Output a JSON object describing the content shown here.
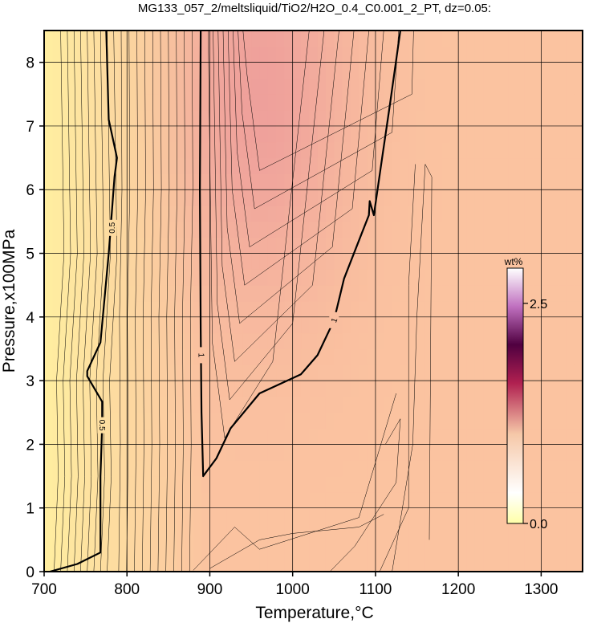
{
  "chart_data": {
    "type": "heatmap",
    "title": "MG133_057_2/meltsliquid/TiO2/H2O_0.4_C0.001_2_PT, dz=0.05:",
    "xlabel": "Temperature,°C",
    "ylabel": "Pressure,x100MPa",
    "xlim": [
      700,
      1350
    ],
    "ylim": [
      0,
      8.5
    ],
    "x_ticks": [
      700,
      800,
      900,
      1000,
      1100,
      1200,
      1300
    ],
    "y_ticks": [
      0,
      1,
      2,
      3,
      4,
      5,
      6,
      7,
      8
    ],
    "grid": true,
    "colorbar": {
      "title": "wt%",
      "range": [
        0.0,
        2.9
      ],
      "ticks": [
        {
          "value": 0.0,
          "label": "0.0"
        },
        {
          "value": 2.5,
          "label": "2.5"
        }
      ],
      "placement": "right-inside",
      "colors": [
        "#ffffa8",
        "#ffffff",
        "#b02050",
        "#500040",
        "#ffffff"
      ]
    },
    "contour_interval": 0.05,
    "labeled_contours": [
      {
        "level": 0.5,
        "label": "0.5",
        "points": [
          [
            707,
            0.0
          ],
          [
            740,
            0.12
          ],
          [
            768,
            0.3
          ],
          [
            768,
            1.5
          ],
          [
            770,
            2.3
          ],
          [
            770,
            2.67
          ],
          [
            752,
            3.07
          ],
          [
            752,
            3.15
          ],
          [
            768,
            3.6
          ],
          [
            778,
            5.0
          ],
          [
            785,
            6.2
          ],
          [
            788,
            6.5
          ],
          [
            778,
            7.1
          ],
          [
            775,
            8.5
          ]
        ]
      },
      {
        "level": 1.0,
        "label": "1",
        "points": [
          [
            889,
            8.5
          ],
          [
            888,
            6.0
          ],
          [
            889,
            3.8
          ],
          [
            890,
            2.5
          ],
          [
            892,
            1.5
          ],
          [
            908,
            1.78
          ],
          [
            925,
            2.25
          ],
          [
            960,
            2.8
          ],
          [
            985,
            2.95
          ],
          [
            1010,
            3.1
          ],
          [
            1030,
            3.4
          ],
          [
            1050,
            3.95
          ],
          [
            1062,
            4.6
          ],
          [
            1083,
            5.3
          ],
          [
            1092,
            5.6
          ],
          [
            1093,
            5.82
          ],
          [
            1098,
            5.6
          ],
          [
            1108,
            6.5
          ],
          [
            1117,
            7.3
          ],
          [
            1130,
            8.5
          ]
        ]
      }
    ],
    "background_field": {
      "x": [
        700,
        750,
        800,
        850,
        900,
        950,
        1000,
        1050,
        1100,
        1150,
        1200,
        1250,
        1300,
        1350
      ],
      "y": [
        0,
        1,
        2,
        3,
        4,
        5,
        6,
        7,
        8,
        8.5
      ],
      "note_units": "wt%"
    }
  }
}
